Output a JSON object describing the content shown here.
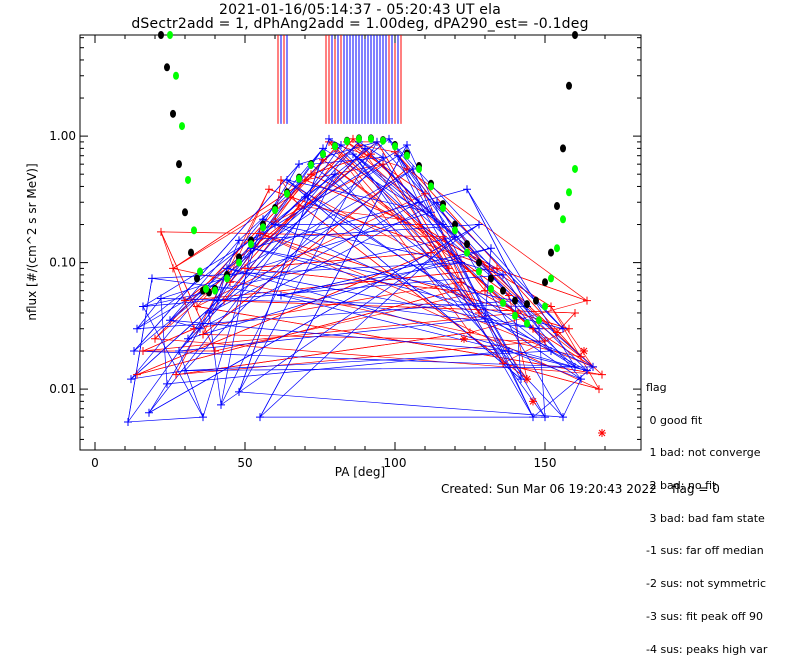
{
  "chart_data": {
    "type": "scatter",
    "title": "2021-01-16/05:14:37 - 05:20:43 UT ela",
    "subtitle": "dSectr2add = 1, dPhAng2add = 1.00deg, dPA290_est=  -0.1deg",
    "xlabel": "PA [deg]",
    "ylabel": "nflux [#/(cm^2 s sr MeV)]",
    "xlim": [
      -5,
      182
    ],
    "ylim": [
      0.0033,
      6.3
    ],
    "yscale": "log",
    "xticks": [
      0,
      50,
      100,
      150
    ],
    "yticks": [
      0.01,
      0.1,
      1.0
    ],
    "ytick_labels": [
      "0.01",
      "0.10",
      "1.00"
    ],
    "grid": false,
    "colors": {
      "red": "#ff0000",
      "blue": "#0000ff",
      "black": "#000000",
      "green": "#00ff00"
    },
    "series": [
      {
        "color": "red",
        "marker": "plus",
        "points": [
          [
            22,
            0.175
          ],
          [
            26,
            0.09
          ],
          [
            30,
            0.05
          ],
          [
            33,
            0.03
          ],
          [
            36,
            0.027
          ],
          [
            40,
            0.02
          ],
          [
            45,
            0.07
          ],
          [
            50,
            0.09
          ],
          [
            55,
            0.17
          ],
          [
            60,
            0.21
          ],
          [
            65,
            0.33
          ],
          [
            68,
            0.28
          ],
          [
            72,
            0.5
          ],
          [
            76,
            0.65
          ],
          [
            80,
            0.8
          ],
          [
            84,
            0.9
          ],
          [
            88,
            0.85
          ],
          [
            92,
            0.72
          ],
          [
            96,
            0.6
          ],
          [
            100,
            0.75
          ],
          [
            102,
            0.22
          ],
          [
            108,
            0.2
          ],
          [
            112,
            0.12
          ],
          [
            118,
            0.09
          ],
          [
            122,
            0.07
          ],
          [
            125,
            0.028
          ],
          [
            130,
            0.06
          ],
          [
            134,
            0.09
          ],
          [
            138,
            0.055
          ],
          [
            141,
            0.04
          ],
          [
            146,
            0.03
          ],
          [
            150,
            0.024
          ],
          [
            154,
            0.028
          ],
          [
            158,
            0.03
          ],
          [
            162,
            0.018
          ],
          [
            166,
            0.015
          ],
          [
            169,
            0.013
          ],
          [
            14,
            0.013
          ],
          [
            16,
            0.02
          ],
          [
            20,
            0.025
          ],
          [
            27,
            0.013
          ],
          [
            34,
            0.045
          ],
          [
            43,
            0.05
          ],
          [
            58,
            0.38
          ],
          [
            62,
            0.45
          ],
          [
            70,
            0.45
          ],
          [
            78,
            0.9
          ],
          [
            86,
            0.95
          ],
          [
            94,
            0.9
          ],
          [
            104,
            0.55
          ],
          [
            110,
            0.35
          ],
          [
            116,
            0.16
          ],
          [
            120,
            0.06
          ],
          [
            128,
            0.04
          ],
          [
            136,
            0.016
          ],
          [
            144,
            0.012
          ],
          [
            152,
            0.045
          ],
          [
            160,
            0.04
          ],
          [
            164,
            0.05
          ],
          [
            168,
            0.01
          ]
        ]
      },
      {
        "color": "red",
        "marker": "star",
        "points": [
          [
            123,
            0.025
          ],
          [
            146,
            0.008
          ],
          [
            144,
            0.012
          ],
          [
            163,
            0.02
          ],
          [
            169,
            0.0045
          ]
        ]
      },
      {
        "color": "blue",
        "marker": "plus",
        "points": [
          [
            11,
            0.0055
          ],
          [
            12,
            0.012
          ],
          [
            13,
            0.02
          ],
          [
            14,
            0.03
          ],
          [
            16,
            0.045
          ],
          [
            19,
            0.075
          ],
          [
            22,
            0.052
          ],
          [
            25,
            0.035
          ],
          [
            28,
            0.02
          ],
          [
            31,
            0.025
          ],
          [
            35,
            0.03
          ],
          [
            38,
            0.04
          ],
          [
            41,
            0.05
          ],
          [
            44,
            0.09
          ],
          [
            48,
            0.15
          ],
          [
            52,
            0.13
          ],
          [
            56,
            0.22
          ],
          [
            60,
            0.2
          ],
          [
            64,
            0.45
          ],
          [
            68,
            0.6
          ],
          [
            72,
            0.6
          ],
          [
            76,
            0.8
          ],
          [
            78,
            0.95
          ],
          [
            82,
            0.85
          ],
          [
            86,
            0.72
          ],
          [
            90,
            0.8
          ],
          [
            94,
            0.9
          ],
          [
            98,
            0.95
          ],
          [
            101,
            0.7
          ],
          [
            104,
            0.85
          ],
          [
            108,
            0.3
          ],
          [
            112,
            0.25
          ],
          [
            116,
            0.2
          ],
          [
            120,
            0.16
          ],
          [
            124,
            0.38
          ],
          [
            128,
            0.2
          ],
          [
            132,
            0.13
          ],
          [
            136,
            0.08
          ],
          [
            140,
            0.05
          ],
          [
            144,
            0.045
          ],
          [
            148,
            0.03
          ],
          [
            152,
            0.02
          ],
          [
            156,
            0.03
          ],
          [
            160,
            0.015
          ],
          [
            164,
            0.014
          ],
          [
            166,
            0.015
          ],
          [
            18,
            0.0065
          ],
          [
            24,
            0.011
          ],
          [
            30,
            0.014
          ],
          [
            36,
            0.006
          ],
          [
            42,
            0.0075
          ],
          [
            48,
            0.0095
          ],
          [
            55,
            0.006
          ],
          [
            62,
            0.055
          ],
          [
            70,
            0.33
          ],
          [
            80,
            0.5
          ],
          [
            88,
            0.9
          ],
          [
            96,
            0.68
          ],
          [
            106,
            0.55
          ],
          [
            114,
            0.3
          ],
          [
            122,
            0.1
          ],
          [
            130,
            0.036
          ],
          [
            138,
            0.02
          ],
          [
            142,
            0.012
          ],
          [
            146,
            0.006
          ],
          [
            150,
            0.006
          ],
          [
            156,
            0.006
          ],
          [
            162,
            0.012
          ]
        ]
      },
      {
        "color": "black",
        "marker": "dot",
        "name": "",
        "points": [
          [
            22,
            6.3
          ],
          [
            24,
            3.5
          ],
          [
            26,
            1.5
          ],
          [
            28,
            0.6
          ],
          [
            30,
            0.25
          ],
          [
            32,
            0.12
          ],
          [
            34,
            0.075
          ],
          [
            36,
            0.06
          ],
          [
            38,
            0.058
          ],
          [
            40,
            0.062
          ],
          [
            44,
            0.08
          ],
          [
            48,
            0.11
          ],
          [
            52,
            0.15
          ],
          [
            56,
            0.2
          ],
          [
            60,
            0.27
          ],
          [
            64,
            0.36
          ],
          [
            68,
            0.47
          ],
          [
            72,
            0.6
          ],
          [
            76,
            0.72
          ],
          [
            80,
            0.84
          ],
          [
            84,
            0.92
          ],
          [
            88,
            0.96
          ],
          [
            92,
            0.96
          ],
          [
            96,
            0.93
          ],
          [
            100,
            0.85
          ],
          [
            104,
            0.73
          ],
          [
            108,
            0.58
          ],
          [
            112,
            0.42
          ],
          [
            116,
            0.29
          ],
          [
            120,
            0.2
          ],
          [
            124,
            0.14
          ],
          [
            128,
            0.1
          ],
          [
            132,
            0.075
          ],
          [
            136,
            0.06
          ],
          [
            140,
            0.05
          ],
          [
            144,
            0.047
          ],
          [
            147,
            0.05
          ],
          [
            150,
            0.07
          ],
          [
            152,
            0.12
          ],
          [
            154,
            0.28
          ],
          [
            156,
            0.8
          ],
          [
            158,
            2.5
          ],
          [
            160,
            6.3
          ]
        ]
      },
      {
        "color": "green",
        "marker": "dot",
        "name": "",
        "points": [
          [
            25,
            6.3
          ],
          [
            27,
            3.0
          ],
          [
            29,
            1.2
          ],
          [
            31,
            0.45
          ],
          [
            33,
            0.18
          ],
          [
            35,
            0.085
          ],
          [
            37,
            0.062
          ],
          [
            40,
            0.06
          ],
          [
            44,
            0.075
          ],
          [
            48,
            0.1
          ],
          [
            52,
            0.14
          ],
          [
            56,
            0.19
          ],
          [
            60,
            0.26
          ],
          [
            64,
            0.35
          ],
          [
            68,
            0.46
          ],
          [
            72,
            0.59
          ],
          [
            76,
            0.72
          ],
          [
            80,
            0.83
          ],
          [
            84,
            0.91
          ],
          [
            88,
            0.95
          ],
          [
            92,
            0.95
          ],
          [
            96,
            0.92
          ],
          [
            100,
            0.83
          ],
          [
            104,
            0.7
          ],
          [
            108,
            0.55
          ],
          [
            112,
            0.4
          ],
          [
            116,
            0.27
          ],
          [
            120,
            0.18
          ],
          [
            124,
            0.12
          ],
          [
            128,
            0.085
          ],
          [
            132,
            0.062
          ],
          [
            136,
            0.048
          ],
          [
            140,
            0.038
          ],
          [
            144,
            0.033
          ],
          [
            148,
            0.035
          ],
          [
            150,
            0.045
          ],
          [
            152,
            0.075
          ],
          [
            154,
            0.13
          ],
          [
            156,
            0.22
          ],
          [
            158,
            0.36
          ],
          [
            160,
            0.55
          ]
        ]
      }
    ],
    "vlines": {
      "red": [
        61,
        63,
        77,
        78,
        80,
        82,
        83,
        84,
        85,
        86,
        87,
        88,
        89,
        90,
        91,
        92,
        93,
        94,
        95,
        96,
        97,
        98,
        100,
        102
      ],
      "blue": [
        62,
        64,
        79,
        81,
        83,
        84,
        85,
        86,
        87,
        88,
        89,
        90,
        91,
        92,
        93,
        94,
        95,
        96,
        97,
        99,
        101
      ],
      "y_from": 1.25,
      "y_to": 6.3
    },
    "legend_title": "flag",
    "legend": [
      " 0 good fit",
      " 1 bad: not converge",
      " 2 bad: no fit",
      " 3 bad: bad fam state",
      "-1 sus: far off median",
      "-2 sus: not symmetric",
      "-3 sus: fit peak off 90",
      "-4 sus: peaks high var"
    ]
  },
  "footer": {
    "created": "Created: Sun Mar 06 19:20:43 2022",
    "flag": "flag = 0"
  }
}
